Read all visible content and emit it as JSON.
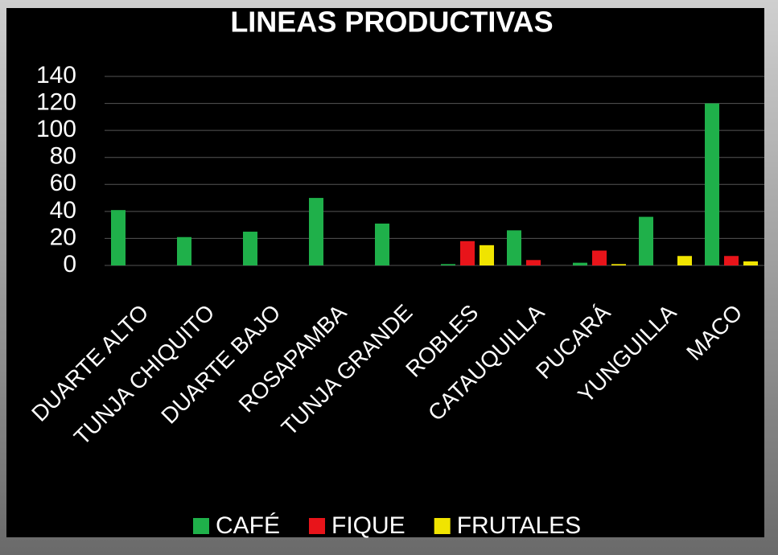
{
  "chart_data": {
    "type": "bar",
    "title": "LINEAS PRODUCTIVAS",
    "categories": [
      "DUARTE ALTO",
      "TUNJA CHIQUITO",
      "DUARTE BAJO",
      "ROSAPAMBA",
      "TUNJA GRANDE",
      "ROBLES",
      "CATAUQUILLA",
      "PUCARÁ",
      "YUNGUILLA",
      "MACO"
    ],
    "series": [
      {
        "name": "CAFÉ",
        "color": "#1fb04a",
        "values": [
          41,
          21,
          25,
          50,
          31,
          1,
          26,
          2,
          36,
          120
        ]
      },
      {
        "name": "FIQUE",
        "color": "#e8141a",
        "values": [
          null,
          null,
          null,
          null,
          null,
          18,
          4,
          11,
          null,
          7
        ]
      },
      {
        "name": "FRUTALES",
        "color": "#f0e400",
        "values": [
          null,
          null,
          null,
          null,
          null,
          15,
          null,
          1,
          7,
          3
        ]
      }
    ],
    "ylim": [
      0,
      140
    ],
    "yticks": [
      0,
      20,
      40,
      60,
      80,
      100,
      120,
      140
    ],
    "grid": true,
    "legend": "bottom"
  }
}
